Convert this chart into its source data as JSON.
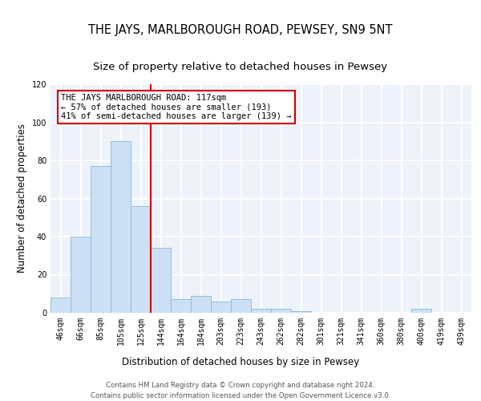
{
  "title": "THE JAYS, MARLBOROUGH ROAD, PEWSEY, SN9 5NT",
  "subtitle": "Size of property relative to detached houses in Pewsey",
  "xlabel": "Distribution of detached houses by size in Pewsey",
  "ylabel": "Number of detached properties",
  "footnote1": "Contains HM Land Registry data © Crown copyright and database right 2024.",
  "footnote2": "Contains public sector information licensed under the Open Government Licence v3.0.",
  "bin_labels": [
    "46sqm",
    "66sqm",
    "85sqm",
    "105sqm",
    "125sqm",
    "144sqm",
    "164sqm",
    "184sqm",
    "203sqm",
    "223sqm",
    "243sqm",
    "262sqm",
    "282sqm",
    "301sqm",
    "321sqm",
    "341sqm",
    "360sqm",
    "380sqm",
    "400sqm",
    "419sqm",
    "439sqm"
  ],
  "bar_values": [
    8,
    40,
    77,
    90,
    56,
    34,
    7,
    9,
    6,
    7,
    2,
    2,
    1,
    0,
    0,
    0,
    0,
    0,
    2,
    0,
    0
  ],
  "bar_color": "#cce0f5",
  "bar_edge_color": "#8ab4d8",
  "red_line_x": 4.5,
  "red_line_color": "#cc0000",
  "annotation_text": "THE JAYS MARLBOROUGH ROAD: 117sqm\n← 57% of detached houses are smaller (193)\n41% of semi-detached houses are larger (139) →",
  "annotation_box_color": "white",
  "annotation_box_edge": "#cc0000",
  "ylim": [
    0,
    120
  ],
  "yticks": [
    0,
    20,
    40,
    60,
    80,
    100,
    120
  ],
  "background_color": "#eef2fa",
  "grid_color": "white",
  "title_fontsize": 10.5,
  "subtitle_fontsize": 9.5,
  "axis_label_fontsize": 8.5,
  "tick_fontsize": 7,
  "annotation_fontsize": 7.5,
  "footnote_fontsize": 6.2
}
